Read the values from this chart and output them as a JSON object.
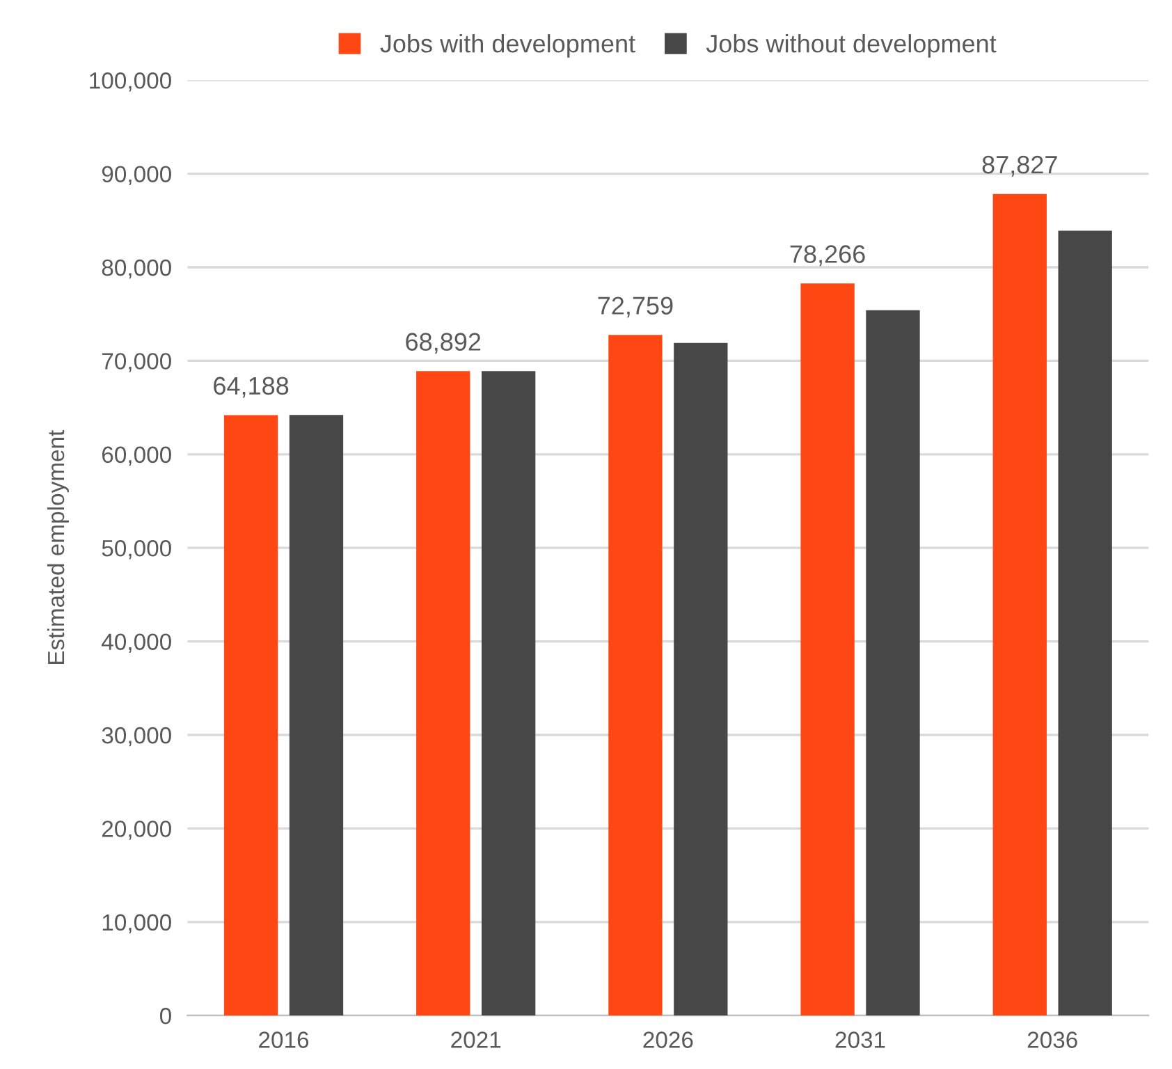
{
  "chart_data": {
    "type": "bar",
    "ylabel": "Estimated employment",
    "categories": [
      "2016",
      "2021",
      "2026",
      "2031",
      "2036"
    ],
    "series": [
      {
        "name": "Jobs with development",
        "color": "#ff4713",
        "values": [
          64188,
          68892,
          72759,
          78266,
          87827
        ],
        "value_labels": [
          "64,188",
          "68,892",
          "72,759",
          "78,266",
          "87,827"
        ]
      },
      {
        "name": "Jobs without development",
        "color": "#474747",
        "values": [
          64200,
          68900,
          71900,
          75400,
          83900
        ]
      }
    ],
    "ylim": [
      0,
      100000
    ],
    "yticks": [
      {
        "value": 0,
        "label": "0"
      },
      {
        "value": 10000,
        "label": "10,000"
      },
      {
        "value": 20000,
        "label": "20,000"
      },
      {
        "value": 30000,
        "label": "30,000"
      },
      {
        "value": 40000,
        "label": "40,000"
      },
      {
        "value": 50000,
        "label": "50,000"
      },
      {
        "value": 60000,
        "label": "60,000"
      },
      {
        "value": 70000,
        "label": "70,000"
      },
      {
        "value": 80000,
        "label": "80,000"
      },
      {
        "value": 90000,
        "label": "90,000"
      },
      {
        "value": 100000,
        "label": "100,000"
      }
    ],
    "grid": "y",
    "legend": "top"
  }
}
